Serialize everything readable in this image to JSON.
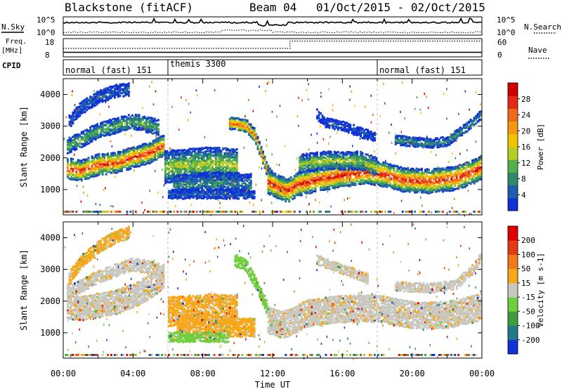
{
  "header": {
    "station": "Blackstone (fitACF)",
    "beam": "Beam 04",
    "date_range": "01/Oct/2015 - 02/Oct/2015"
  },
  "summary_panels": {
    "nsky_label": "N.Sky",
    "nsearch_label": "N.Search",
    "freq_label_1": "Freq.",
    "freq_label_2": "[MHz]",
    "nave_label": "Nave",
    "cpid_label": "CPID",
    "noise_ticks_left": [
      "10^5",
      "10^0"
    ],
    "noise_ticks_right": [
      "10^5",
      "10^0"
    ],
    "freq_ticks": [
      "18",
      "8"
    ],
    "nave_ticks": [
      "60",
      "0"
    ],
    "freq_mhz": 10.5,
    "nave_before": 28,
    "nave_after": 52,
    "nave_switch_hour": 13,
    "cpid_segments": [
      {
        "label": "normal (fast) 151",
        "start_hour": 0,
        "end_hour": 6
      },
      {
        "label": "themis 3300",
        "start_hour": 6,
        "end_hour": 18
      },
      {
        "label": "normal (fast) 151",
        "start_hour": 18,
        "end_hour": 24
      }
    ]
  },
  "chart_data": [
    {
      "type": "heatmap",
      "name": "power",
      "ylabel": "Slant Range [km]",
      "yticks": [
        "1000",
        "2000",
        "3000",
        "4000"
      ],
      "ylim": [
        200,
        4500
      ],
      "xlim": [
        0,
        24
      ],
      "colorbar": {
        "label": "Power [dB]",
        "ticks": [
          "4",
          "8",
          "12",
          "16",
          "20",
          "24",
          "28"
        ],
        "colors": [
          "#1030d8",
          "#1f5fb0",
          "#2f8a6a",
          "#55b04a",
          "#b8cc22",
          "#f5c400",
          "#f59a10",
          "#ef6a18",
          "#e22a14",
          "#d00000"
        ]
      },
      "bands": [
        {
          "points": [
            [
              0.2,
              1650
            ],
            [
              1,
              1580
            ],
            [
              2,
              1780
            ],
            [
              3,
              1830
            ],
            [
              4,
              2000
            ],
            [
              5,
              2150
            ],
            [
              5.8,
              2400
            ]
          ],
          "width": 300,
          "level": 0.85
        },
        {
          "points": [
            [
              0.2,
              2350
            ],
            [
              1,
              2550
            ],
            [
              2,
              2850
            ],
            [
              3,
              3000
            ],
            [
              4,
              3150
            ],
            [
              5.5,
              2950
            ]
          ],
          "width": 220,
          "level": 0.35
        },
        {
          "points": [
            [
              0.3,
              3100
            ],
            [
              1,
              3550
            ],
            [
              2,
              3900
            ],
            [
              3,
              4100
            ],
            [
              3.8,
              4150
            ]
          ],
          "width": 180,
          "level": 0.15
        },
        {
          "points": [
            [
              5.8,
              1700
            ],
            [
              7,
              1750
            ],
            [
              8,
              1800
            ],
            [
              9,
              1800
            ],
            [
              10,
              1750
            ]
          ],
          "width": 500,
          "level": 0.45
        },
        {
          "points": [
            [
              6.3,
              1100
            ],
            [
              7.5,
              1150
            ],
            [
              8.5,
              1200
            ],
            [
              9.5,
              1200
            ],
            [
              10.8,
              1150
            ]
          ],
          "width": 300,
          "level": 0.25
        },
        {
          "points": [
            [
              6,
              850
            ],
            [
              8,
              850
            ],
            [
              10,
              850
            ],
            [
              11,
              850
            ]
          ],
          "width": 120,
          "level": 0.15
        },
        {
          "points": [
            [
              9.5,
              3100
            ],
            [
              10.5,
              3000
            ],
            [
              11,
              2700
            ],
            [
              11.7,
              1600
            ],
            [
              12.2,
              1200
            ],
            [
              12.8,
              1000
            ]
          ],
          "width": 180,
          "level": 0.8
        },
        {
          "points": [
            [
              11.7,
              1250
            ],
            [
              12.4,
              1050
            ],
            [
              12.9,
              950
            ],
            [
              13.4,
              1150
            ],
            [
              14.5,
              1300
            ],
            [
              16,
              1450
            ],
            [
              17.5,
              1550
            ],
            [
              18.5,
              1450
            ],
            [
              19.5,
              1300
            ],
            [
              21,
              1250
            ],
            [
              22.5,
              1350
            ],
            [
              23.5,
              1550
            ],
            [
              24,
              1700
            ]
          ],
          "width": 360,
          "level": 0.9
        },
        {
          "points": [
            [
              13.5,
              1800
            ],
            [
              15,
              1900
            ],
            [
              17,
              1900
            ],
            [
              18,
              1700
            ]
          ],
          "width": 250,
          "level": 0.45
        },
        {
          "points": [
            [
              19,
              2550
            ],
            [
              20,
              2500
            ],
            [
              21,
              2450
            ],
            [
              22,
              2500
            ],
            [
              23,
              2900
            ],
            [
              24,
              3350
            ]
          ],
          "width": 150,
          "level": 0.25
        },
        {
          "points": [
            [
              14.5,
              3400
            ],
            [
              15,
              3100
            ],
            [
              16,
              3000
            ],
            [
              17,
              2800
            ],
            [
              17.9,
              2650
            ]
          ],
          "width": 150,
          "level": 0.1
        }
      ]
    },
    {
      "type": "heatmap",
      "name": "velocity",
      "ylabel": "Slant Range [km]",
      "yticks": [
        "1000",
        "2000",
        "3000",
        "4000"
      ],
      "xlabel": "Time UT",
      "xticks": [
        "00:00",
        "04:00",
        "08:00",
        "12:00",
        "16:00",
        "20:00",
        "00:00"
      ],
      "ylim": [
        200,
        4500
      ],
      "xlim": [
        0,
        24
      ],
      "colorbar": {
        "label": "Velocity [m s-1]",
        "ticks": [
          "200",
          "100",
          "50",
          "15",
          "-15",
          "-50",
          "-100",
          "-200"
        ],
        "colors": [
          "#1030d8",
          "#1f7a8a",
          "#3f9d3f",
          "#6fcf3a",
          "#c8c8c0",
          "#f6a81a",
          "#f07a18",
          "#e33a12",
          "#e00000"
        ]
      },
      "bands": [
        {
          "points": [
            [
              0.2,
              1800
            ],
            [
              1,
              1750
            ],
            [
              2,
              1850
            ],
            [
              3,
              1950
            ],
            [
              4,
              2150
            ],
            [
              5,
              2450
            ],
            [
              5.8,
              2800
            ]
          ],
          "width": 350,
          "color": "#c8c8c0"
        },
        {
          "points": [
            [
              0.2,
              2300
            ],
            [
              1,
              2450
            ],
            [
              2,
              2750
            ],
            [
              3,
              2950
            ],
            [
              4,
              3150
            ],
            [
              5.5,
              3000
            ]
          ],
          "width": 200,
          "color": "#c8c8c0"
        },
        {
          "points": [
            [
              0.3,
              2700
            ],
            [
              1,
              3200
            ],
            [
              2,
              3700
            ],
            [
              3,
              4000
            ],
            [
              3.8,
              4150
            ]
          ],
          "width": 180,
          "color": "#f6a81a"
        },
        {
          "points": [
            [
              6,
              1650
            ],
            [
              7.5,
              1700
            ],
            [
              8.5,
              1750
            ],
            [
              10,
              1700
            ]
          ],
          "width": 450,
          "color": "#f6a81a"
        },
        {
          "points": [
            [
              6.5,
              1100
            ],
            [
              8,
              1150
            ],
            [
              9.5,
              1150
            ],
            [
              11,
              1150
            ]
          ],
          "width": 250,
          "color": "#f6a81a"
        },
        {
          "points": [
            [
              6,
              850
            ],
            [
              8,
              850
            ],
            [
              9.5,
              850
            ]
          ],
          "width": 130,
          "color": "#6fcf3a"
        },
        {
          "points": [
            [
              9.8,
              3300
            ],
            [
              10.5,
              3100
            ],
            [
              11,
              2600
            ],
            [
              11.6,
              1900
            ],
            [
              12,
              1300
            ],
            [
              12.5,
              1050
            ]
          ],
          "width": 170,
          "color": "#6fcf3a"
        },
        {
          "points": [
            [
              11.7,
              1400
            ],
            [
              12.5,
              1250
            ],
            [
              13,
              1300
            ],
            [
              14,
              1600
            ],
            [
              16,
              1750
            ],
            [
              18,
              1750
            ],
            [
              20,
              1550
            ],
            [
              22,
              1550
            ],
            [
              24,
              1800
            ]
          ],
          "width": 420,
          "color": "#c8c8c0"
        },
        {
          "points": [
            [
              19,
              2450
            ],
            [
              21,
              2400
            ],
            [
              22.5,
              2500
            ],
            [
              23.5,
              3000
            ],
            [
              24,
              3400
            ]
          ],
          "width": 150,
          "color": "#c8c8c0"
        },
        {
          "points": [
            [
              14.5,
              3300
            ],
            [
              16,
              3000
            ],
            [
              17.5,
              2700
            ]
          ],
          "width": 150,
          "color": "#c8c8c0"
        }
      ]
    }
  ]
}
